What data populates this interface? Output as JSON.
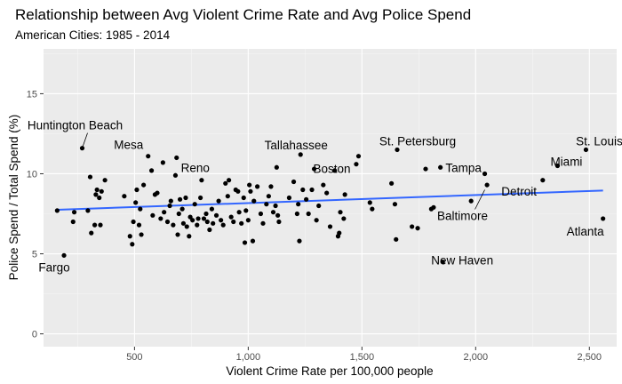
{
  "chart_data": {
    "type": "scatter",
    "title": "Relationship between Avg Violent Crime Rate and Avg Police Spend",
    "subtitle": "American Cities: 1985 - 2014",
    "xlabel": "Violent Crime Rate per 100,000 people",
    "ylabel": "Police Spend / Total Spend (%)",
    "xlim": [
      100,
      2620
    ],
    "ylim": [
      -0.8,
      17.8
    ],
    "x_ticks": [
      500,
      1000,
      1500,
      2000,
      2500
    ],
    "x_tick_labels": [
      "500",
      "1,000",
      "1,500",
      "2,000",
      "2,500"
    ],
    "y_ticks": [
      0,
      5,
      10,
      15
    ],
    "y_tick_labels": [
      "0",
      "5",
      "10",
      "15"
    ],
    "grid": true,
    "trend_line": {
      "color": "#3366ff",
      "points": [
        [
          160,
          7.75
        ],
        [
          2560,
          8.95
        ]
      ]
    },
    "points": [
      [
        160,
        7.7
      ],
      [
        190,
        4.9
      ],
      [
        230,
        7.0
      ],
      [
        235,
        7.6
      ],
      [
        270,
        11.6
      ],
      [
        295,
        7.7
      ],
      [
        305,
        9.8
      ],
      [
        310,
        6.3
      ],
      [
        325,
        6.8
      ],
      [
        330,
        8.7
      ],
      [
        335,
        9.0
      ],
      [
        345,
        8.5
      ],
      [
        350,
        6.8
      ],
      [
        355,
        8.9
      ],
      [
        370,
        9.6
      ],
      [
        455,
        8.6
      ],
      [
        480,
        6.1
      ],
      [
        490,
        5.6
      ],
      [
        495,
        7.0
      ],
      [
        505,
        8.2
      ],
      [
        510,
        9.0
      ],
      [
        520,
        6.8
      ],
      [
        525,
        7.8
      ],
      [
        530,
        6.2
      ],
      [
        540,
        9.3
      ],
      [
        560,
        11.1
      ],
      [
        575,
        10.2
      ],
      [
        580,
        7.4
      ],
      [
        590,
        8.7
      ],
      [
        600,
        8.8
      ],
      [
        615,
        7.2
      ],
      [
        625,
        10.7
      ],
      [
        630,
        7.6
      ],
      [
        645,
        7.0
      ],
      [
        655,
        8.0
      ],
      [
        660,
        8.3
      ],
      [
        670,
        6.8
      ],
      [
        680,
        9.9
      ],
      [
        685,
        11.0
      ],
      [
        690,
        6.2
      ],
      [
        695,
        7.5
      ],
      [
        700,
        8.4
      ],
      [
        710,
        7.8
      ],
      [
        715,
        6.9
      ],
      [
        725,
        8.5
      ],
      [
        730,
        6.7
      ],
      [
        740,
        6.1
      ],
      [
        745,
        7.3
      ],
      [
        755,
        7.1
      ],
      [
        765,
        8.1
      ],
      [
        775,
        6.8
      ],
      [
        780,
        7.2
      ],
      [
        790,
        8.5
      ],
      [
        795,
        9.6
      ],
      [
        805,
        7.2
      ],
      [
        815,
        7.5
      ],
      [
        820,
        7.0
      ],
      [
        830,
        6.5
      ],
      [
        840,
        7.8
      ],
      [
        845,
        6.9
      ],
      [
        860,
        7.4
      ],
      [
        870,
        8.3
      ],
      [
        880,
        7.1
      ],
      [
        890,
        6.8
      ],
      [
        900,
        9.4
      ],
      [
        910,
        8.6
      ],
      [
        915,
        9.6
      ],
      [
        925,
        7.3
      ],
      [
        935,
        7.0
      ],
      [
        945,
        9.0
      ],
      [
        955,
        8.9
      ],
      [
        960,
        7.6
      ],
      [
        970,
        6.9
      ],
      [
        980,
        8.5
      ],
      [
        985,
        5.7
      ],
      [
        990,
        7.7
      ],
      [
        1000,
        7.1
      ],
      [
        1005,
        9.3
      ],
      [
        1010,
        8.9
      ],
      [
        1020,
        5.8
      ],
      [
        1025,
        8.3
      ],
      [
        1040,
        9.2
      ],
      [
        1055,
        7.5
      ],
      [
        1065,
        6.9
      ],
      [
        1080,
        8.1
      ],
      [
        1090,
        8.6
      ],
      [
        1100,
        9.2
      ],
      [
        1110,
        7.6
      ],
      [
        1120,
        8.0
      ],
      [
        1125,
        10.4
      ],
      [
        1130,
        7.4
      ],
      [
        1135,
        7.0
      ],
      [
        1180,
        8.5
      ],
      [
        1200,
        9.5
      ],
      [
        1215,
        7.5
      ],
      [
        1220,
        8.1
      ],
      [
        1225,
        5.8
      ],
      [
        1230,
        11.2
      ],
      [
        1240,
        9.0
      ],
      [
        1255,
        8.4
      ],
      [
        1265,
        7.5
      ],
      [
        1280,
        9.0
      ],
      [
        1290,
        10.3
      ],
      [
        1300,
        7.1
      ],
      [
        1310,
        8.0
      ],
      [
        1330,
        9.3
      ],
      [
        1345,
        8.8
      ],
      [
        1360,
        6.7
      ],
      [
        1380,
        10.2
      ],
      [
        1395,
        6.1
      ],
      [
        1400,
        6.3
      ],
      [
        1405,
        7.6
      ],
      [
        1420,
        7.2
      ],
      [
        1425,
        8.7
      ],
      [
        1475,
        10.6
      ],
      [
        1485,
        11.1
      ],
      [
        1535,
        8.2
      ],
      [
        1545,
        7.8
      ],
      [
        1630,
        9.4
      ],
      [
        1645,
        8.1
      ],
      [
        1650,
        5.9
      ],
      [
        1655,
        11.5
      ],
      [
        1720,
        6.7
      ],
      [
        1745,
        6.6
      ],
      [
        1780,
        10.3
      ],
      [
        1805,
        7.8
      ],
      [
        1815,
        7.9
      ],
      [
        1845,
        10.4
      ],
      [
        1855,
        4.5
      ],
      [
        1980,
        8.3
      ],
      [
        2040,
        10.0
      ],
      [
        2050,
        9.3
      ],
      [
        2295,
        9.6
      ],
      [
        2360,
        10.5
      ],
      [
        2485,
        11.5
      ],
      [
        2560,
        7.2
      ]
    ],
    "labels": [
      {
        "text": "Huntington Beach",
        "x": 270,
        "y": 11.6
      },
      {
        "text": "Mesa",
        "x": 560,
        "y": 11.1
      },
      {
        "text": "Reno",
        "x": 685,
        "y": 11.0
      },
      {
        "text": "Tallahassee",
        "x": 1230,
        "y": 11.2
      },
      {
        "text": "Boston",
        "x": 1395,
        "y": 10.6
      },
      {
        "text": "St. Petersburg",
        "x": 1655,
        "y": 11.5
      },
      {
        "text": "Tampa",
        "x": 1845,
        "y": 10.4
      },
      {
        "text": "Detroit",
        "x": 2050,
        "y": 9.3
      },
      {
        "text": "Baltimore",
        "x": 2040,
        "y": 9.0
      },
      {
        "text": "New Haven",
        "x": 1855,
        "y": 4.5
      },
      {
        "text": "St. Louis",
        "x": 2485,
        "y": 11.5
      },
      {
        "text": "Miami",
        "x": 2360,
        "y": 10.5
      },
      {
        "text": "Atlanta",
        "x": 2560,
        "y": 7.2
      },
      {
        "text": "Fargo",
        "x": 190,
        "y": 4.9
      }
    ],
    "colors": {
      "panel": "#ebebeb",
      "grid_major": "#ffffff",
      "grid_minor": "#f5f5f5",
      "point": "#000000",
      "trend": "#3366ff"
    }
  }
}
